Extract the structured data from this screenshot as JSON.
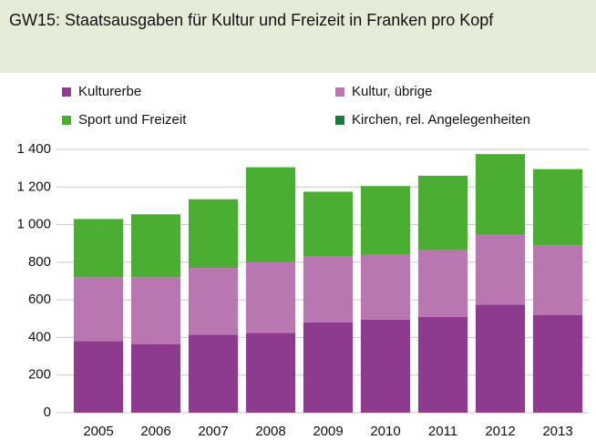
{
  "chart_data": {
    "type": "stacked_bar",
    "title": "GW15: Staatsausgaben für Kultur und Freizeit in Franken pro Kopf",
    "categories": [
      "2005",
      "2006",
      "2007",
      "2008",
      "2009",
      "2010",
      "2011",
      "2012",
      "2013"
    ],
    "series": [
      {
        "name": "Kulturerbe",
        "color": "#8e3b8e",
        "values": [
          380,
          365,
          415,
          425,
          480,
          495,
          510,
          575,
          520
        ]
      },
      {
        "name": "Kultur, übrige",
        "color": "#b877b0",
        "values": [
          340,
          355,
          355,
          375,
          350,
          345,
          355,
          370,
          370
        ]
      },
      {
        "name": "Sport und Freizeit",
        "color": "#4aae32",
        "values": [
          310,
          335,
          365,
          505,
          345,
          365,
          395,
          430,
          405
        ]
      },
      {
        "name": "Kirchen, rel. Angelegenheiten",
        "color": "#1a7a3a",
        "values": [
          0,
          0,
          0,
          0,
          0,
          0,
          0,
          0,
          0
        ]
      }
    ],
    "ylim": [
      0,
      1400
    ],
    "yticks": [
      0,
      200,
      400,
      600,
      800,
      {
        "value": 1000,
        "label": "1 000"
      },
      {
        "value": 1200,
        "label": "1 200"
      },
      {
        "value": 1400,
        "label": "1 400"
      }
    ],
    "grid": true,
    "legend": "top"
  }
}
